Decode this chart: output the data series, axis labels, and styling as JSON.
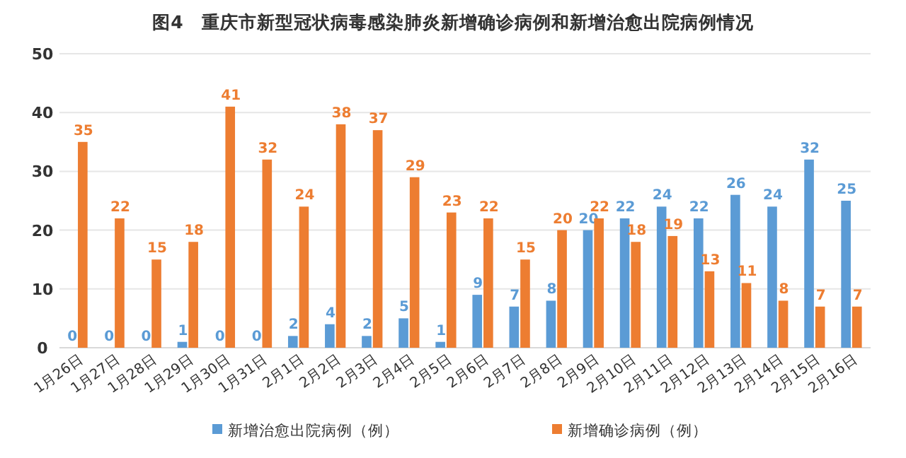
{
  "chart_data": {
    "type": "bar",
    "title": "图4　重庆市新型冠状病毒感染肺炎新增确诊病例和新增治愈出院病例情况",
    "categories": [
      "1月26日",
      "1月27日",
      "1月28日",
      "1月29日",
      "1月30日",
      "1月31日",
      "2月1日",
      "2月2日",
      "2月3日",
      "2月4日",
      "2月5日",
      "2月6日",
      "2月7日",
      "2月8日",
      "2月9日",
      "2月10日",
      "2月11日",
      "2月12日",
      "2月13日",
      "2月14日",
      "2月15日",
      "2月16日"
    ],
    "series": [
      {
        "name": "新增治愈出院病例（例）",
        "color": "#5b9bd5",
        "values": [
          0,
          0,
          0,
          1,
          0,
          0,
          2,
          4,
          2,
          5,
          1,
          9,
          7,
          8,
          20,
          22,
          24,
          22,
          26,
          24,
          32,
          25
        ]
      },
      {
        "name": "新增确诊病例（例）",
        "color": "#ed7d31",
        "values": [
          35,
          22,
          15,
          18,
          41,
          32,
          24,
          38,
          37,
          29,
          23,
          22,
          15,
          20,
          22,
          18,
          19,
          13,
          11,
          8,
          7,
          7
        ]
      }
    ],
    "ylim": [
      0,
      50
    ],
    "yticks": [
      0,
      10,
      20,
      30,
      40,
      50
    ],
    "grid": "y",
    "legend": "bottom",
    "data_labels": true
  }
}
